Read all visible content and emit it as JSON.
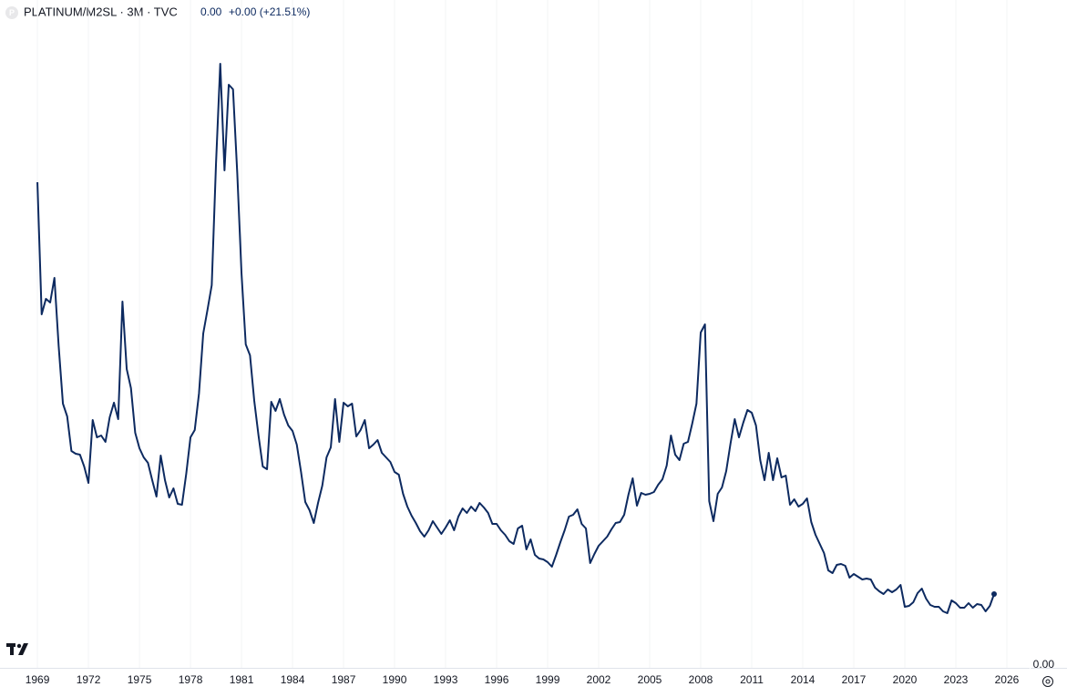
{
  "chart_data": {
    "type": "line",
    "symbol_icon": "P",
    "title": "PLATINUM/M2SL · 3M · TVC",
    "last_value": "0.00",
    "change": "+0.00 (+21.51%)",
    "xlim": [
      1966.8,
      2027.34
    ],
    "ylim": [
      0,
      0.0073
    ],
    "xticks": [
      1969,
      1972,
      1975,
      1978,
      1981,
      1984,
      1987,
      1990,
      1993,
      1996,
      1999,
      2002,
      2005,
      2008,
      2011,
      2014,
      2017,
      2020,
      2023,
      2026
    ],
    "yticks": [
      {
        "value": 0,
        "label": "0.00"
      }
    ],
    "x": [
      1969,
      1969.25,
      1969.5,
      1969.75,
      1970,
      1970.25,
      1970.5,
      1970.75,
      1971,
      1971.25,
      1971.5,
      1971.75,
      1972,
      1972.25,
      1972.5,
      1972.75,
      1973,
      1973.25,
      1973.5,
      1973.75,
      1974,
      1974.25,
      1974.5,
      1974.75,
      1975,
      1975.25,
      1975.5,
      1975.75,
      1976,
      1976.25,
      1976.5,
      1976.75,
      1977,
      1977.25,
      1977.5,
      1977.75,
      1978,
      1978.25,
      1978.5,
      1978.75,
      1979,
      1979.25,
      1979.5,
      1979.75,
      1980,
      1980.25,
      1980.5,
      1980.75,
      1981,
      1981.25,
      1981.5,
      1981.75,
      1982,
      1982.25,
      1982.5,
      1982.75,
      1983,
      1983.25,
      1983.5,
      1983.75,
      1984,
      1984.25,
      1984.5,
      1984.75,
      1985,
      1985.25,
      1985.5,
      1985.75,
      1986,
      1986.25,
      1986.5,
      1986.75,
      1987,
      1987.25,
      1987.5,
      1987.75,
      1988,
      1988.25,
      1988.5,
      1988.75,
      1989,
      1989.25,
      1989.5,
      1989.75,
      1990,
      1990.25,
      1990.5,
      1990.75,
      1991,
      1991.25,
      1991.5,
      1991.75,
      1992,
      1992.25,
      1992.5,
      1992.75,
      1993,
      1993.25,
      1993.5,
      1993.75,
      1994,
      1994.25,
      1994.5,
      1994.75,
      1995,
      1995.25,
      1995.5,
      1995.75,
      1996,
      1996.25,
      1996.5,
      1996.75,
      1997,
      1997.25,
      1997.5,
      1997.75,
      1998,
      1998.25,
      1998.5,
      1998.75,
      1999,
      1999.25,
      1999.5,
      1999.75,
      2000,
      2000.25,
      2000.5,
      2000.75,
      2001,
      2001.25,
      2001.5,
      2001.75,
      2002,
      2002.25,
      2002.5,
      2002.75,
      2003,
      2003.25,
      2003.5,
      2003.75,
      2004,
      2004.25,
      2004.5,
      2004.75,
      2005,
      2005.25,
      2005.5,
      2005.75,
      2006,
      2006.25,
      2006.5,
      2006.75,
      2007,
      2007.25,
      2007.5,
      2007.75,
      2008,
      2008.25,
      2008.5,
      2008.75,
      2009,
      2009.25,
      2009.5,
      2009.75,
      2010,
      2010.25,
      2010.5,
      2010.75,
      2011,
      2011.25,
      2011.5,
      2011.75,
      2012,
      2012.25,
      2012.5,
      2012.75,
      2013,
      2013.25,
      2013.5,
      2013.75,
      2014,
      2014.25,
      2014.5,
      2014.75,
      2015,
      2015.25,
      2015.5,
      2015.75,
      2016,
      2016.25,
      2016.5,
      2016.75,
      2017,
      2017.25,
      2017.5,
      2017.75,
      2018,
      2018.25,
      2018.5,
      2018.75,
      2019,
      2019.25,
      2019.5,
      2019.75,
      2020,
      2020.25,
      2020.5,
      2020.75,
      2021,
      2021.25,
      2021.5,
      2021.75,
      2022,
      2022.25,
      2022.5,
      2022.75,
      2023,
      2023.25,
      2023.5,
      2023.75,
      2024,
      2024.25,
      2024.5,
      2024.75,
      2025,
      2025.25
    ],
    "series": [
      {
        "name": "PLATINUM/M2SL",
        "color": "#0d2a60",
        "values": [
          0.0053,
          0.00385,
          0.00402,
          0.00398,
          0.00425,
          0.0035,
          0.00287,
          0.00273,
          0.00235,
          0.00232,
          0.00231,
          0.00218,
          0.002,
          0.00269,
          0.0025,
          0.00252,
          0.00245,
          0.00272,
          0.00288,
          0.0027,
          0.00399,
          0.00325,
          0.00304,
          0.00255,
          0.00238,
          0.00228,
          0.00222,
          0.00203,
          0.00185,
          0.0023,
          0.00203,
          0.00184,
          0.00194,
          0.00177,
          0.00176,
          0.0021,
          0.0025,
          0.00258,
          0.00298,
          0.00364,
          0.0039,
          0.00417,
          0.0055,
          0.0066,
          0.00543,
          0.00637,
          0.00632,
          0.0054,
          0.0043,
          0.00352,
          0.0034,
          0.0029,
          0.00252,
          0.00218,
          0.00215,
          0.00289,
          0.00279,
          0.00292,
          0.00275,
          0.00263,
          0.00257,
          0.00242,
          0.00212,
          0.00179,
          0.0017,
          0.00156,
          0.00178,
          0.00197,
          0.00228,
          0.00239,
          0.00292,
          0.00245,
          0.00288,
          0.00284,
          0.00287,
          0.00251,
          0.00258,
          0.00269,
          0.00238,
          0.00242,
          0.00247,
          0.00233,
          0.00228,
          0.00223,
          0.00212,
          0.00209,
          0.00188,
          0.00174,
          0.00164,
          0.00156,
          0.00147,
          0.00141,
          0.00148,
          0.00158,
          0.00151,
          0.00144,
          0.00151,
          0.00159,
          0.00148,
          0.00163,
          0.00172,
          0.00167,
          0.00174,
          0.00169,
          0.00178,
          0.00173,
          0.00167,
          0.00155,
          0.00155,
          0.00148,
          0.00143,
          0.00136,
          0.00133,
          0.0015,
          0.00153,
          0.00127,
          0.00138,
          0.00121,
          0.00117,
          0.00116,
          0.00113,
          0.00108,
          0.00121,
          0.00135,
          0.00148,
          0.00163,
          0.00165,
          0.00171,
          0.00155,
          0.0015,
          0.00112,
          0.00122,
          0.00131,
          0.00136,
          0.00141,
          0.00149,
          0.00156,
          0.00157,
          0.00165,
          0.00187,
          0.00205,
          0.00175,
          0.00189,
          0.00187,
          0.00188,
          0.0019,
          0.00198,
          0.00204,
          0.00219,
          0.00252,
          0.00231,
          0.00225,
          0.00243,
          0.00245,
          0.00265,
          0.00287,
          0.00365,
          0.00374,
          0.0018,
          0.00158,
          0.00188,
          0.00195,
          0.00213,
          0.00243,
          0.0027,
          0.0025,
          0.00266,
          0.0028,
          0.00277,
          0.00263,
          0.00225,
          0.00203,
          0.00233,
          0.00203,
          0.00227,
          0.00206,
          0.00208,
          0.00176,
          0.00182,
          0.00174,
          0.00177,
          0.00183,
          0.00157,
          0.00143,
          0.00133,
          0.00123,
          0.00104,
          0.00101,
          0.0011,
          0.00111,
          0.00109,
          0.00096,
          0.001,
          0.00097,
          0.00094,
          0.00095,
          0.00094,
          0.00085,
          0.00081,
          0.00078,
          0.00083,
          0.0008,
          0.00083,
          0.00088,
          0.00064,
          0.00065,
          0.00069,
          0.00079,
          0.00084,
          0.00073,
          0.00066,
          0.00064,
          0.00064,
          0.00059,
          0.00057,
          0.00071,
          0.00068,
          0.00063,
          0.00063,
          0.00068,
          0.00063,
          0.00067,
          0.00066,
          0.00059,
          0.00065,
          0.00078
        ]
      }
    ]
  }
}
